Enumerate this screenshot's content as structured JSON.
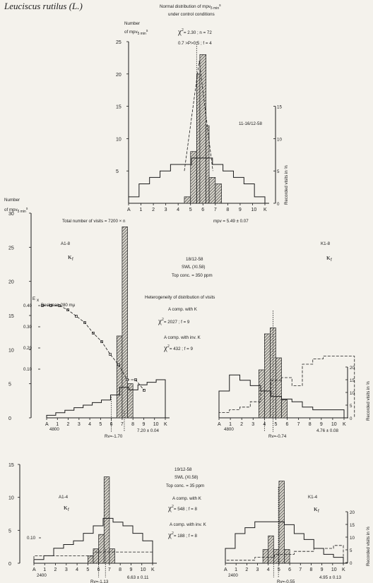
{
  "species": "Leuciscus rutilus (L.)",
  "chart_data": [
    {
      "id": "control",
      "type": "bar",
      "title": "Normal distribution of mpv",
      "title_sub": "5 min",
      "title_suffix": "s",
      "subtitle": "under control conditions",
      "ylabel_lines": [
        "Number",
        "of mpv"
      ],
      "ylabel_sub": "5 min",
      "ylabel_suffix": "s",
      "stats_chi": "= 2.30 ; n = 72",
      "stats_p": "0.7 >P>0.5 ; f = 4",
      "date": "11-16/12-58",
      "footer_left": "Total number of visits = 7200 × n",
      "footer_right": "mpv = 5.49 ± 0.07",
      "xticks": [
        "A",
        "1",
        "2",
        "3",
        "4",
        "5",
        "6",
        "7",
        "8",
        "9",
        "10",
        "K"
      ],
      "yticks": [
        "25",
        "20",
        "15",
        "10",
        "5",
        "0"
      ],
      "ylim": [
        0,
        25
      ],
      "r_ticks": [
        "15",
        "10",
        "5",
        "0"
      ],
      "r_label": "Recorded visits in %",
      "r_lim": [
        0,
        25
      ],
      "bins": [
        [
          4.5,
          5,
          1
        ],
        [
          5,
          5.5,
          8
        ],
        [
          5.5,
          5.75,
          20
        ],
        [
          5.75,
          6.25,
          23
        ],
        [
          6.25,
          6.5,
          12
        ],
        [
          6.5,
          7,
          4
        ],
        [
          7,
          7.5,
          3
        ]
      ],
      "visits_pct": [
        1,
        3,
        4,
        5,
        6,
        6,
        7,
        7,
        6,
        5,
        4,
        3,
        1
      ],
      "mpv_line": [
        5,
        5,
        5,
        5,
        22,
        23,
        21,
        6,
        5,
        5,
        5
      ],
      "mean": 5.49
    },
    {
      "id": "A1-8",
      "type": "bar",
      "label": "A1-8",
      "kappa": "κ",
      "kappa_sub": "f",
      "ylabel_lines": [
        "Number",
        "of mpv"
      ],
      "ylabel_sub": "5 min",
      "ylabel_suffix": "s",
      "yticks": [
        "30",
        "25",
        "20",
        "15",
        "10",
        "5",
        "0"
      ],
      "ylim": [
        0,
        30
      ],
      "xticks": [
        "A",
        "1",
        "2",
        "3",
        "4",
        "5",
        "6",
        "7",
        "8",
        "9",
        "10",
        "K"
      ],
      "e_label": "E",
      "e_label_sub": "x",
      "ext_label": "Beckman 280 mμ",
      "ext_ticks": [
        "0.40",
        "0.30",
        "0.20",
        "0.10"
      ],
      "ext_curve": [
        0.4,
        0.4,
        0.4,
        0.38,
        0.35,
        0.32,
        0.27,
        0.23,
        0.17,
        0.12,
        0.05,
        0.05,
        0.0
      ],
      "visits_pct": [
        1,
        2,
        3,
        4,
        5,
        6,
        7,
        9,
        12,
        11,
        13,
        14,
        15
      ],
      "base_count": "4800",
      "rv": "Rv=-1.70",
      "mean_text": "7.20 ± 0.04",
      "bins": [
        [
          6.5,
          7,
          12
        ],
        [
          7,
          7.5,
          28
        ],
        [
          7.5,
          8,
          5
        ]
      ],
      "mean": 7.2
    },
    {
      "id": "K1-8",
      "type": "bar",
      "label": "K1-8",
      "kappa": "κ",
      "kappa_sub": "f",
      "xticks": [
        "A",
        "1",
        "2",
        "3",
        "4",
        "5",
        "6",
        "7",
        "8",
        "9",
        "10",
        "K"
      ],
      "base_count": "4800",
      "rv": "Rv=-0.74",
      "mean_text": "4.76 ± 0.08",
      "bins": [
        [
          3.5,
          4,
          8
        ],
        [
          4,
          4.5,
          14
        ],
        [
          4.5,
          5,
          15
        ],
        [
          5,
          5.5,
          10
        ],
        [
          5.5,
          6,
          3
        ]
      ],
      "visits_pct": [
        10,
        16,
        14,
        12,
        10,
        8,
        7,
        6,
        4,
        3,
        3,
        3
      ],
      "dash_pct": [
        2,
        3,
        4,
        6,
        10,
        14,
        15,
        12,
        20,
        22,
        23,
        23,
        23
      ],
      "mean": 4.76,
      "r_ticks": [
        "20",
        "15",
        "10",
        "5",
        "0"
      ],
      "r_label": "Recorded visits in %"
    },
    {
      "id": "A1-4",
      "type": "bar",
      "label": "A1-4",
      "kappa": "κ",
      "kappa_sub": "f",
      "yticks": [
        "15",
        "10",
        "5",
        "0"
      ],
      "ylim": [
        0,
        15
      ],
      "xticks": [
        "A",
        "1",
        "2",
        "3",
        "4",
        "5",
        "6",
        "7",
        "8",
        "9",
        "10",
        "K"
      ],
      "ext_ticks": [
        "0.10"
      ],
      "base_count": "2400",
      "rv": "Rv=-1.13",
      "mean_text": "6.63 ± 0.11",
      "bins": [
        [
          5,
          5.5,
          1
        ],
        [
          5.5,
          6,
          2
        ],
        [
          6,
          6.5,
          4
        ],
        [
          6.5,
          7,
          12
        ],
        [
          7,
          7.5,
          2
        ]
      ],
      "visits_pct": [
        1,
        2,
        4,
        5,
        6,
        8,
        10,
        12,
        11,
        10,
        8,
        6
      ],
      "dash_pct": [
        2,
        2,
        2,
        2,
        2,
        2,
        3,
        3,
        3,
        3,
        3,
        3
      ],
      "mean": 6.63
    },
    {
      "id": "K1-4",
      "type": "bar",
      "label": "K1-4",
      "kappa": "κ",
      "kappa_sub": "f",
      "xticks": [
        "A",
        "1",
        "2",
        "3",
        "4",
        "5",
        "6",
        "7",
        "8",
        "9",
        "10",
        "K"
      ],
      "base_count": "2400",
      "rv": "Rv=-0.55",
      "mean_text": "4.95 ± 0.13",
      "bins": [
        [
          3.5,
          4,
          2
        ],
        [
          4,
          4.5,
          4
        ],
        [
          4.5,
          5,
          2
        ],
        [
          5,
          5.5,
          12
        ],
        [
          5.5,
          6,
          2
        ]
      ],
      "visits_pct": [
        5,
        10,
        12,
        14,
        14,
        14,
        13,
        10,
        8,
        5,
        3,
        2
      ],
      "dash_pct": [
        1,
        1,
        1,
        2,
        2,
        3,
        3,
        4,
        4,
        5,
        5,
        6
      ],
      "mean": 4.95,
      "r_ticks": [
        "20",
        "15",
        "10",
        "5",
        "0"
      ],
      "r_label": "Recorded visits in %"
    }
  ],
  "middle_text": {
    "date": "18/12-58",
    "swl": "SWL (XI.58)",
    "conc": "Top conc. = 350 ppm",
    "heterogeneity": "Heterogeneity of distribution of visits",
    "comp_k": "A comp. with K",
    "chi_k": "= 2027 ;  f = 9",
    "comp_inv": "A comp. with inv. K",
    "chi_inv": "= 432 ;  f = 9"
  },
  "bottom_text": {
    "date": "19/12-58",
    "swl": "SWL (XI.58)",
    "conc": "Top conc. = 35 ppm",
    "comp_k": "A comp. with K",
    "chi_k": "= 548 ;  f = 8",
    "comp_inv": "A comp. with inv. K",
    "chi_inv": "= 188 ;  f = 8"
  },
  "chi_symbol": "χ",
  "chi_sup": "2",
  "colors": {
    "ink": "#1c1c1c",
    "paper": "#f4f2ec"
  }
}
